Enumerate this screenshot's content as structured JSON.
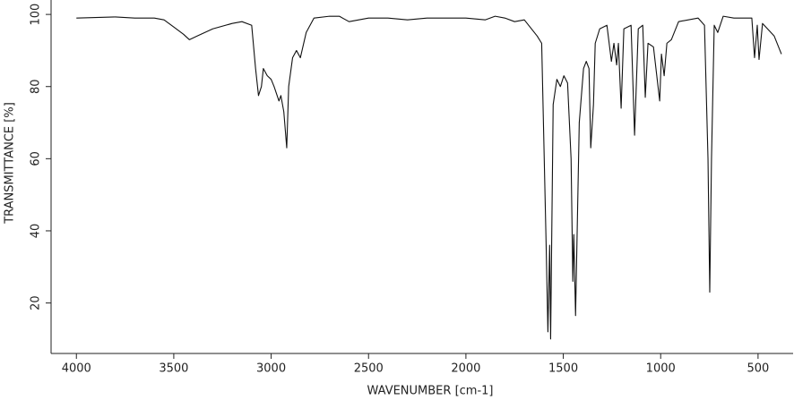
{
  "chart_data": {
    "type": "line",
    "xlabel": "WAVENUMBER [cm-1]",
    "ylabel": "TRANSMITTANCE [%]",
    "xlim": [
      4130,
      320
    ],
    "ylim": [
      6,
      104
    ],
    "xticks": [
      4000,
      3500,
      3000,
      2500,
      2000,
      1500,
      1000,
      500
    ],
    "yticks": [
      20,
      40,
      60,
      80,
      100
    ],
    "series": [
      {
        "name": "spectrum",
        "color": "#111111",
        "x": [
          4000,
          3800,
          3700,
          3600,
          3550,
          3500,
          3450,
          3420,
          3380,
          3300,
          3200,
          3150,
          3100,
          3080,
          3065,
          3050,
          3040,
          3020,
          3000,
          2985,
          2960,
          2950,
          2935,
          2920,
          2910,
          2890,
          2870,
          2850,
          2820,
          2780,
          2700,
          2650,
          2600,
          2500,
          2400,
          2300,
          2200,
          2000,
          1900,
          1850,
          1800,
          1750,
          1700,
          1634,
          1611,
          1588,
          1579,
          1570,
          1565,
          1552,
          1533,
          1515,
          1497,
          1478,
          1460,
          1451,
          1446,
          1437,
          1418,
          1396,
          1382,
          1368,
          1359,
          1345,
          1336,
          1313,
          1276,
          1253,
          1240,
          1226,
          1217,
          1203,
          1189,
          1152,
          1134,
          1115,
          1092,
          1079,
          1065,
          1037,
          1005,
          996,
          982,
          968,
          945,
          908,
          808,
          775,
          757,
          748,
          739,
          725,
          707,
          679,
          624,
          532,
          518,
          504,
          495,
          477,
          417,
          380
        ],
        "values": [
          99,
          99.3,
          99,
          99,
          98.5,
          96.5,
          94.5,
          93,
          94,
          96,
          97.5,
          98,
          97,
          85,
          77.5,
          80,
          85,
          83,
          82,
          80,
          76,
          77.5,
          73,
          63,
          80,
          88,
          90,
          88,
          95,
          99,
          99.5,
          99.5,
          98,
          99,
          99,
          98.5,
          99,
          99,
          98.5,
          99.5,
          99,
          98,
          98.5,
          94,
          92,
          36,
          12,
          36,
          10,
          75,
          82,
          80,
          83,
          81,
          60,
          26,
          39,
          16.5,
          70,
          85,
          87,
          85,
          63,
          75,
          92,
          96,
          97,
          87,
          92,
          86,
          92,
          74,
          96,
          97,
          66.5,
          96,
          97,
          77,
          92,
          91,
          76,
          89,
          83,
          92,
          93,
          98,
          99,
          97,
          60,
          23,
          60,
          97,
          95,
          99.5,
          99,
          99,
          88,
          97,
          87.5,
          97.5,
          94,
          89
        ]
      }
    ]
  }
}
